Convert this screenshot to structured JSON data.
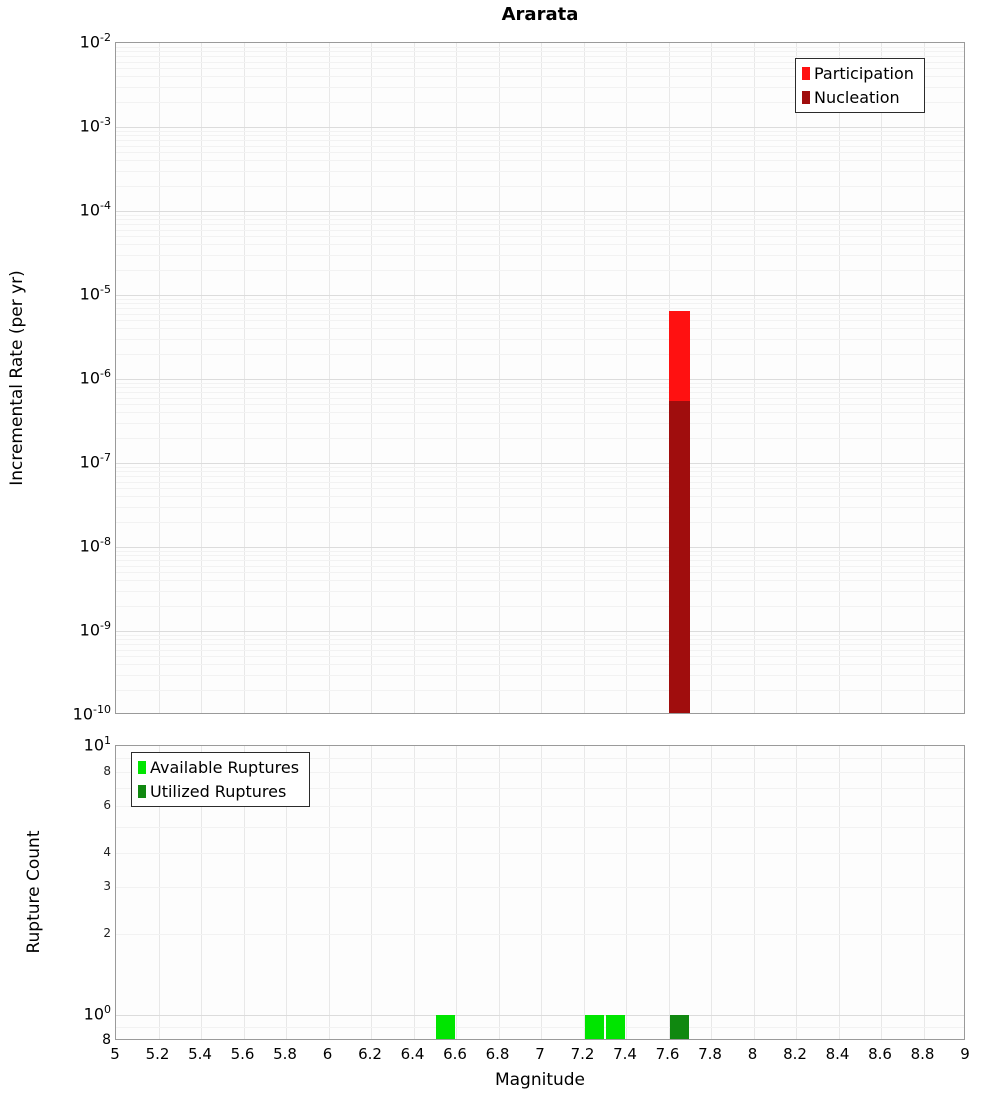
{
  "chart_data": [
    {
      "type": "bar",
      "title": "Ararata",
      "ylabel": "Incremental Rate (per yr)",
      "xlabel": "",
      "yscale": "log",
      "xlim": [
        5,
        9
      ],
      "ylim": [
        1e-10,
        0.01
      ],
      "grid": true,
      "legend_position": "top-right",
      "xtick_values": [
        5,
        5.2,
        5.4,
        5.6,
        5.8,
        6,
        6.2,
        6.4,
        6.6,
        6.8,
        7,
        7.2,
        7.4,
        7.6,
        7.8,
        8,
        8.2,
        8.4,
        8.6,
        8.8,
        9
      ],
      "yticks": [
        {
          "value": 0.01,
          "label": "10^-2",
          "size": "lg"
        },
        {
          "value": 0.001,
          "label": "10^-3",
          "size": "lg"
        },
        {
          "value": 0.0001,
          "label": "10^-4",
          "size": "lg"
        },
        {
          "value": 1e-05,
          "label": "10^-5",
          "size": "lg"
        },
        {
          "value": 1e-06,
          "label": "10^-6",
          "size": "lg"
        },
        {
          "value": 1e-07,
          "label": "10^-7",
          "size": "lg"
        },
        {
          "value": 1e-08,
          "label": "10^-8",
          "size": "lg"
        },
        {
          "value": 1e-09,
          "label": "10^-9",
          "size": "lg"
        },
        {
          "value": 1e-10,
          "label": "10^-10",
          "size": "lg"
        }
      ],
      "series": [
        {
          "name": "Participation",
          "color": "#ff1111",
          "bars": [
            {
              "x": 7.65,
              "width": 0.1,
              "value": 6.5e-06
            }
          ]
        },
        {
          "name": "Nucleation",
          "color": "#a00d0d",
          "bars": [
            {
              "x": 7.65,
              "width": 0.1,
              "value": 5.5e-07
            }
          ]
        }
      ]
    },
    {
      "type": "bar",
      "title": "",
      "ylabel": "Rupture Count",
      "xlabel": "Magnitude",
      "yscale": "log",
      "xlim": [
        5,
        9
      ],
      "ylim": [
        0.8,
        10
      ],
      "grid": true,
      "legend_position": "top-left",
      "xticks": [
        {
          "value": 5,
          "label": "5"
        },
        {
          "value": 5.2,
          "label": "5.2"
        },
        {
          "value": 5.4,
          "label": "5.4"
        },
        {
          "value": 5.6,
          "label": "5.6"
        },
        {
          "value": 5.8,
          "label": "5.8"
        },
        {
          "value": 6,
          "label": "6"
        },
        {
          "value": 6.2,
          "label": "6.2"
        },
        {
          "value": 6.4,
          "label": "6.4"
        },
        {
          "value": 6.6,
          "label": "6.6"
        },
        {
          "value": 6.8,
          "label": "6.8"
        },
        {
          "value": 7,
          "label": "7"
        },
        {
          "value": 7.2,
          "label": "7.2"
        },
        {
          "value": 7.4,
          "label": "7.4"
        },
        {
          "value": 7.6,
          "label": "7.6"
        },
        {
          "value": 7.8,
          "label": "7.8"
        },
        {
          "value": 8,
          "label": "8"
        },
        {
          "value": 8.2,
          "label": "8.2"
        },
        {
          "value": 8.4,
          "label": "8.4"
        },
        {
          "value": 8.6,
          "label": "8.6"
        },
        {
          "value": 8.8,
          "label": "8.8"
        },
        {
          "value": 9,
          "label": "9"
        }
      ],
      "yticks": [
        {
          "value": 10,
          "label": "10^1",
          "size": "lg"
        },
        {
          "value": 8,
          "label": "8",
          "size": "sm"
        },
        {
          "value": 6,
          "label": "6",
          "size": "sm"
        },
        {
          "value": 4,
          "label": "4",
          "size": "sm"
        },
        {
          "value": 3,
          "label": "3",
          "size": "sm"
        },
        {
          "value": 2,
          "label": "2",
          "size": "sm"
        },
        {
          "value": 1,
          "label": "10^0",
          "size": "lg"
        },
        {
          "value": 0.8,
          "label": "8",
          "size": "md"
        }
      ],
      "series": [
        {
          "name": "Available Ruptures",
          "color": "#00e500",
          "bars": [
            {
              "x": 6.55,
              "width": 0.09,
              "value": 1
            },
            {
              "x": 7.25,
              "width": 0.09,
              "value": 1
            },
            {
              "x": 7.35,
              "width": 0.09,
              "value": 1
            }
          ]
        },
        {
          "name": "Utilized Ruptures",
          "color": "#108810",
          "bars": [
            {
              "x": 7.65,
              "width": 0.09,
              "value": 1
            }
          ]
        }
      ]
    }
  ]
}
